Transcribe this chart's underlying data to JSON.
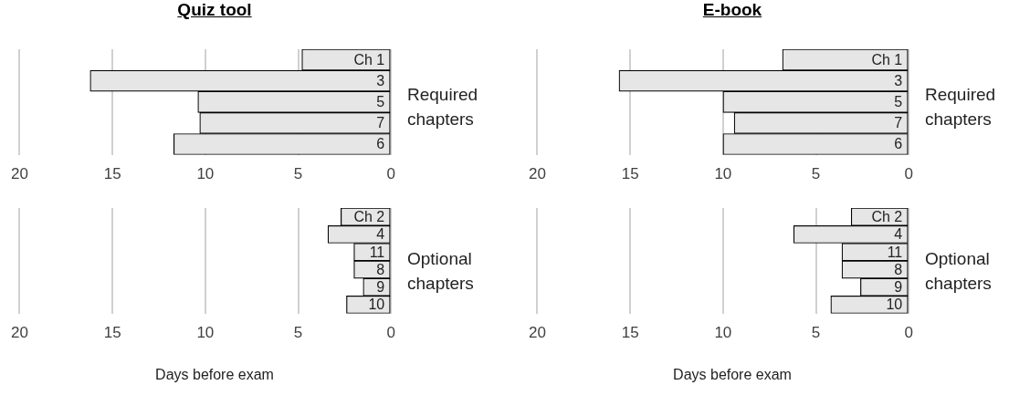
{
  "chart_data": [
    {
      "type": "bar",
      "orientation": "horizontal",
      "title": "Quiz tool",
      "ylabel": "Required chapters",
      "categories": [
        "Ch 1",
        "3",
        "5",
        "7",
        "6"
      ],
      "values": [
        4.8,
        16.2,
        10.4,
        10.3,
        11.7
      ],
      "color": "#e6e6e6",
      "xlim": [
        20,
        0
      ],
      "xticks": [
        20,
        15,
        10,
        5,
        0
      ],
      "grid": "x"
    },
    {
      "type": "bar",
      "orientation": "horizontal",
      "title": "E-book",
      "ylabel": "Required chapters",
      "categories": [
        "Ch 1",
        "3",
        "5",
        "7",
        "6"
      ],
      "values": [
        6.8,
        15.6,
        10.0,
        9.4,
        10.0
      ],
      "color": "#e6e6e6",
      "xlim": [
        20,
        0
      ],
      "xticks": [
        20,
        15,
        10,
        5,
        0
      ],
      "grid": "x"
    },
    {
      "type": "bar",
      "orientation": "horizontal",
      "xlabel": "Days before exam",
      "ylabel": "Optional chapters",
      "categories": [
        "Ch 2",
        "4",
        "11",
        "8",
        "9",
        "10"
      ],
      "values": [
        2.7,
        3.4,
        2.0,
        2.0,
        1.5,
        2.4
      ],
      "color": "#e6e6e6",
      "xlim": [
        20,
        0
      ],
      "xticks": [
        20,
        15,
        10,
        5,
        0
      ],
      "grid": "x"
    },
    {
      "type": "bar",
      "orientation": "horizontal",
      "xlabel": "Days before exam",
      "ylabel": "Optional chapters",
      "categories": [
        "Ch 2",
        "4",
        "11",
        "8",
        "9",
        "10"
      ],
      "values": [
        3.1,
        6.2,
        3.6,
        3.6,
        2.6,
        4.2
      ],
      "color": "#e6e6e6",
      "xlim": [
        20,
        0
      ],
      "xticks": [
        20,
        15,
        10,
        5,
        0
      ],
      "grid": "x"
    }
  ]
}
